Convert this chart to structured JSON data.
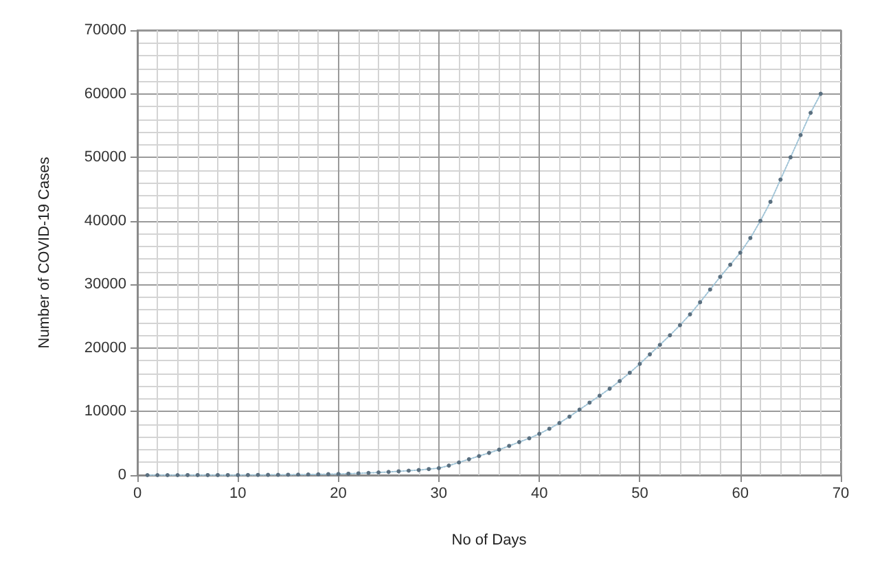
{
  "chart_data": {
    "type": "line",
    "xlabel": "No of Days",
    "ylabel": "Number of COVID-19 Cases",
    "xlim": [
      0,
      70
    ],
    "xticks": [
      0,
      10,
      20,
      30,
      40,
      50,
      60,
      70
    ],
    "ylim": [
      0,
      70000
    ],
    "yticks": [
      0,
      10000,
      20000,
      30000,
      40000,
      50000,
      60000,
      70000
    ],
    "grid": true,
    "marker": "circle",
    "line_style": "dotted",
    "series": [
      {
        "color": "#5b7080",
        "x": [
          1,
          2,
          3,
          4,
          5,
          6,
          7,
          8,
          9,
          10,
          11,
          12,
          13,
          14,
          15,
          16,
          17,
          18,
          19,
          20,
          21,
          22,
          23,
          24,
          25,
          26,
          27,
          28,
          29,
          30,
          31,
          32,
          33,
          34,
          35,
          36,
          37,
          38,
          39,
          40,
          41,
          42,
          43,
          44,
          45,
          46,
          47,
          48,
          49,
          50,
          51,
          52,
          53,
          54,
          55,
          56,
          57,
          58,
          59,
          60,
          61,
          62,
          63,
          64,
          65,
          66,
          67,
          68
        ],
        "values": [
          1,
          1,
          2,
          2,
          3,
          4,
          5,
          6,
          8,
          10,
          20,
          30,
          40,
          50,
          60,
          80,
          100,
          120,
          150,
          180,
          220,
          280,
          350,
          420,
          500,
          600,
          700,
          800,
          950,
          1100,
          1500,
          2000,
          2500,
          3000,
          3500,
          4000,
          4600,
          5200,
          5800,
          6500,
          7300,
          8200,
          9200,
          10300,
          11400,
          12500,
          13600,
          14800,
          16100,
          17500,
          19000,
          20500,
          22000,
          23600,
          25300,
          27200,
          29200,
          31200,
          33100,
          35000,
          37300,
          40000,
          43000,
          46500,
          50000,
          53500,
          57000,
          60000
        ]
      }
    ]
  }
}
